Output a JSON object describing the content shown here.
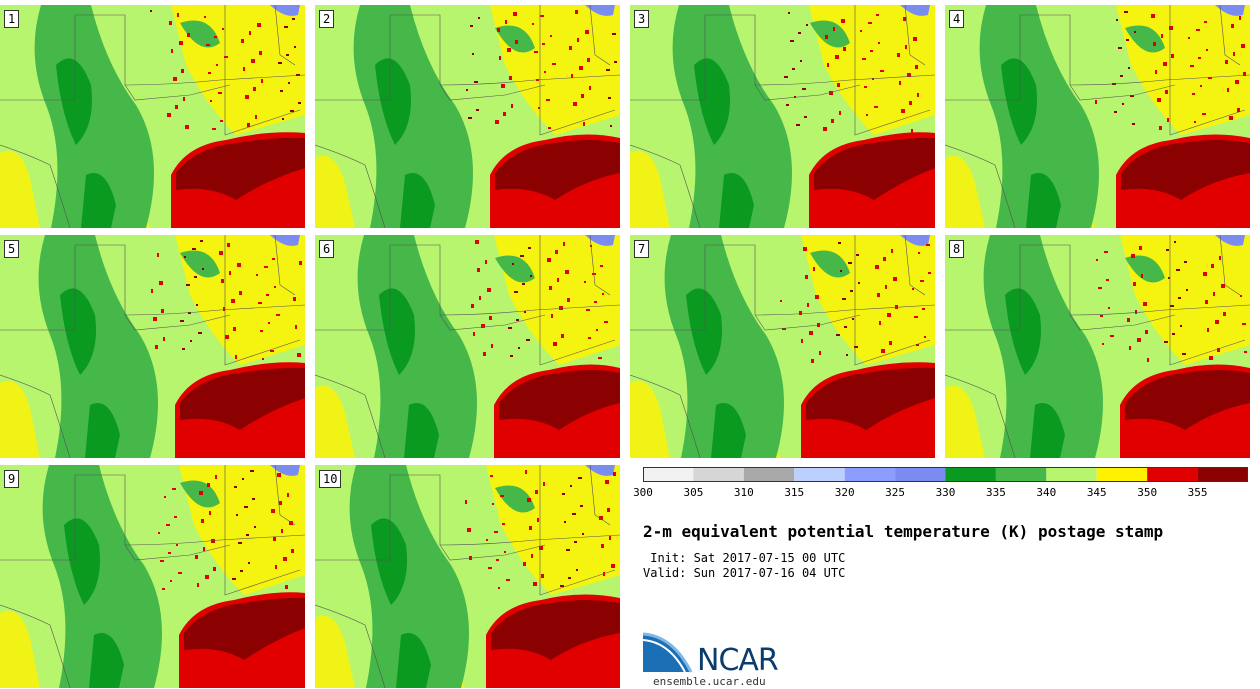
{
  "panels": [
    {
      "label": "1"
    },
    {
      "label": "2"
    },
    {
      "label": "3"
    },
    {
      "label": "4"
    },
    {
      "label": "5"
    },
    {
      "label": "6"
    },
    {
      "label": "7"
    },
    {
      "label": "8"
    },
    {
      "label": "9"
    },
    {
      "label": "10"
    }
  ],
  "colorbar": {
    "ticks": [
      "300",
      "305",
      "310",
      "315",
      "320",
      "325",
      "330",
      "335",
      "340",
      "345",
      "350",
      "355"
    ],
    "colors": [
      "#f2f2f2",
      "#d6d6d6",
      "#a8a8a8",
      "#bcd0ff",
      "#8c9dff",
      "#7a8cf0",
      "#0a9a20",
      "#46b84a",
      "#b8f56e",
      "#fff200",
      "#e00000",
      "#8b0000"
    ]
  },
  "title": "2-m equivalent potential temperature (K) postage stamp",
  "init": " Init: Sat 2017-07-15 00 UTC",
  "valid": "Valid: Sun 2017-07-16 04 UTC",
  "logo": {
    "name": "NCAR",
    "url": "ensemble.ucar.edu"
  },
  "colors": {
    "light_green": "#b8f56e",
    "green": "#46b84a",
    "dark_green": "#0a9a20",
    "yellow": "#fff200",
    "red": "#e00000",
    "dark_red": "#8b0000",
    "blue": "#7a8cf0"
  }
}
